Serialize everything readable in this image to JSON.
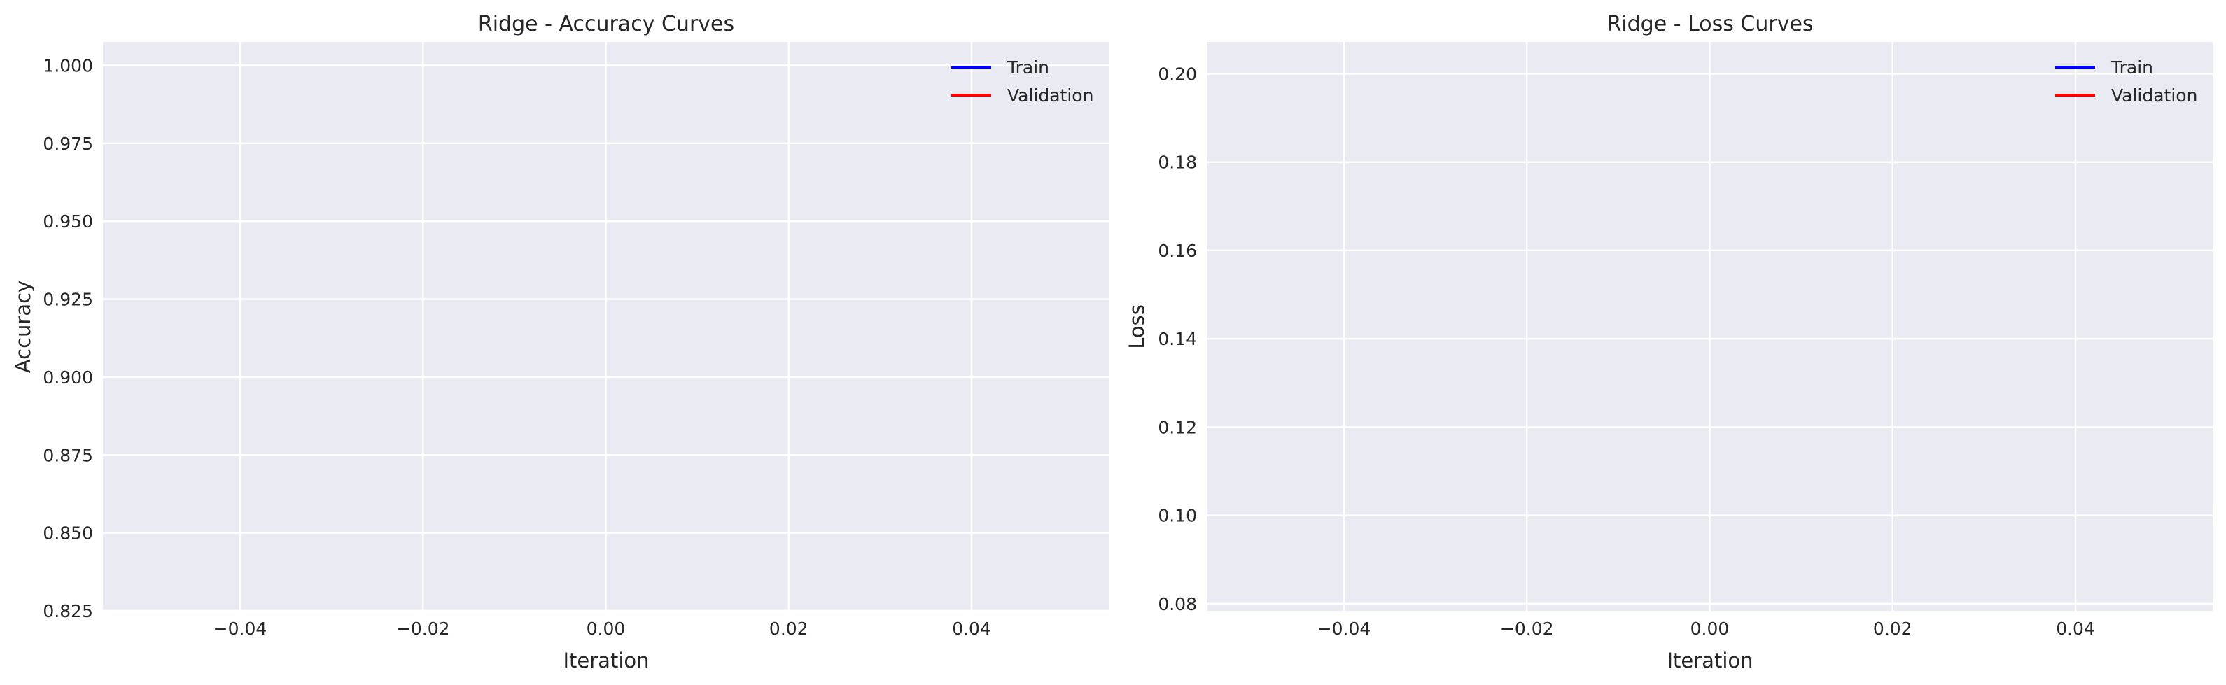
{
  "colors": {
    "plot_background": "#eaeaf2",
    "grid": "#ffffff",
    "train": "#0000ff",
    "validation": "#ff0000"
  },
  "chart_data": [
    {
      "type": "line",
      "title": "Ridge - Accuracy Curves",
      "xlabel": "Iteration",
      "ylabel": "Accuracy",
      "xlim": [
        -0.055,
        0.055
      ],
      "ylim": [
        0.825,
        1.0075
      ],
      "xticks": [
        -0.04,
        -0.02,
        0.0,
        0.02,
        0.04
      ],
      "xtick_labels": [
        "−0.04",
        "−0.02",
        "0.00",
        "0.02",
        "0.04"
      ],
      "yticks": [
        0.825,
        0.85,
        0.875,
        0.9,
        0.925,
        0.95,
        0.975,
        1.0
      ],
      "ytick_labels": [
        "0.825",
        "0.850",
        "0.875",
        "0.900",
        "0.925",
        "0.950",
        "0.975",
        "1.000"
      ],
      "grid": true,
      "legend_position": "top-right",
      "series": [
        {
          "name": "Train",
          "color": "#0000ff",
          "x": [],
          "values": []
        },
        {
          "name": "Validation",
          "color": "#ff0000",
          "x": [],
          "values": []
        }
      ]
    },
    {
      "type": "line",
      "title": "Ridge - Loss Curves",
      "xlabel": "Iteration",
      "ylabel": "Loss",
      "xlim": [
        -0.055,
        0.055
      ],
      "ylim": [
        0.0784,
        0.2072
      ],
      "xticks": [
        -0.04,
        -0.02,
        0.0,
        0.02,
        0.04
      ],
      "xtick_labels": [
        "−0.04",
        "−0.02",
        "0.00",
        "0.02",
        "0.04"
      ],
      "yticks": [
        0.08,
        0.1,
        0.12,
        0.14,
        0.16,
        0.18,
        0.2
      ],
      "ytick_labels": [
        "0.08",
        "0.10",
        "0.12",
        "0.14",
        "0.16",
        "0.18",
        "0.20"
      ],
      "grid": true,
      "legend_position": "top-right",
      "series": [
        {
          "name": "Train",
          "color": "#0000ff",
          "x": [],
          "values": []
        },
        {
          "name": "Validation",
          "color": "#ff0000",
          "x": [],
          "values": []
        }
      ]
    }
  ]
}
